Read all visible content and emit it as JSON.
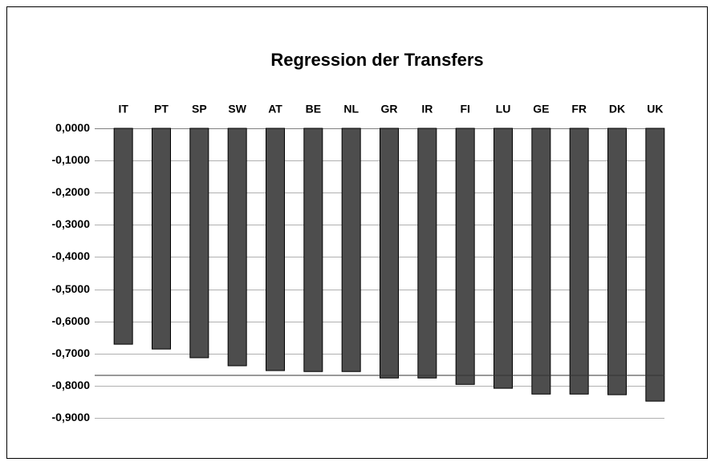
{
  "chart_data": {
    "type": "bar",
    "title": "Regression der Transfers",
    "categories": [
      "IT",
      "PT",
      "SP",
      "SW",
      "AT",
      "BE",
      "NL",
      "GR",
      "IR",
      "FI",
      "LU",
      "GE",
      "FR",
      "DK",
      "UK"
    ],
    "values": [
      -0.671,
      -0.686,
      -0.713,
      -0.738,
      -0.753,
      -0.756,
      -0.756,
      -0.776,
      -0.776,
      -0.796,
      -0.808,
      -0.826,
      -0.826,
      -0.828,
      -0.848
    ],
    "color": "#4d4d4d",
    "reference_value": -0.768,
    "ylim": [
      -0.9,
      0
    ],
    "yticks": [
      {
        "value": 0,
        "label": "0,0000"
      },
      {
        "value": -0.1,
        "label": "-0,1000"
      },
      {
        "value": -0.2,
        "label": "-0,2000"
      },
      {
        "value": -0.3,
        "label": "-0,3000"
      },
      {
        "value": -0.4,
        "label": "-0,4000"
      },
      {
        "value": -0.5,
        "label": "-0,5000"
      },
      {
        "value": -0.6,
        "label": "-0,6000"
      },
      {
        "value": -0.7,
        "label": "-0,7000"
      },
      {
        "value": -0.8,
        "label": "-0,8000"
      },
      {
        "value": -0.9,
        "label": "-0,9000"
      }
    ],
    "grid": true
  }
}
